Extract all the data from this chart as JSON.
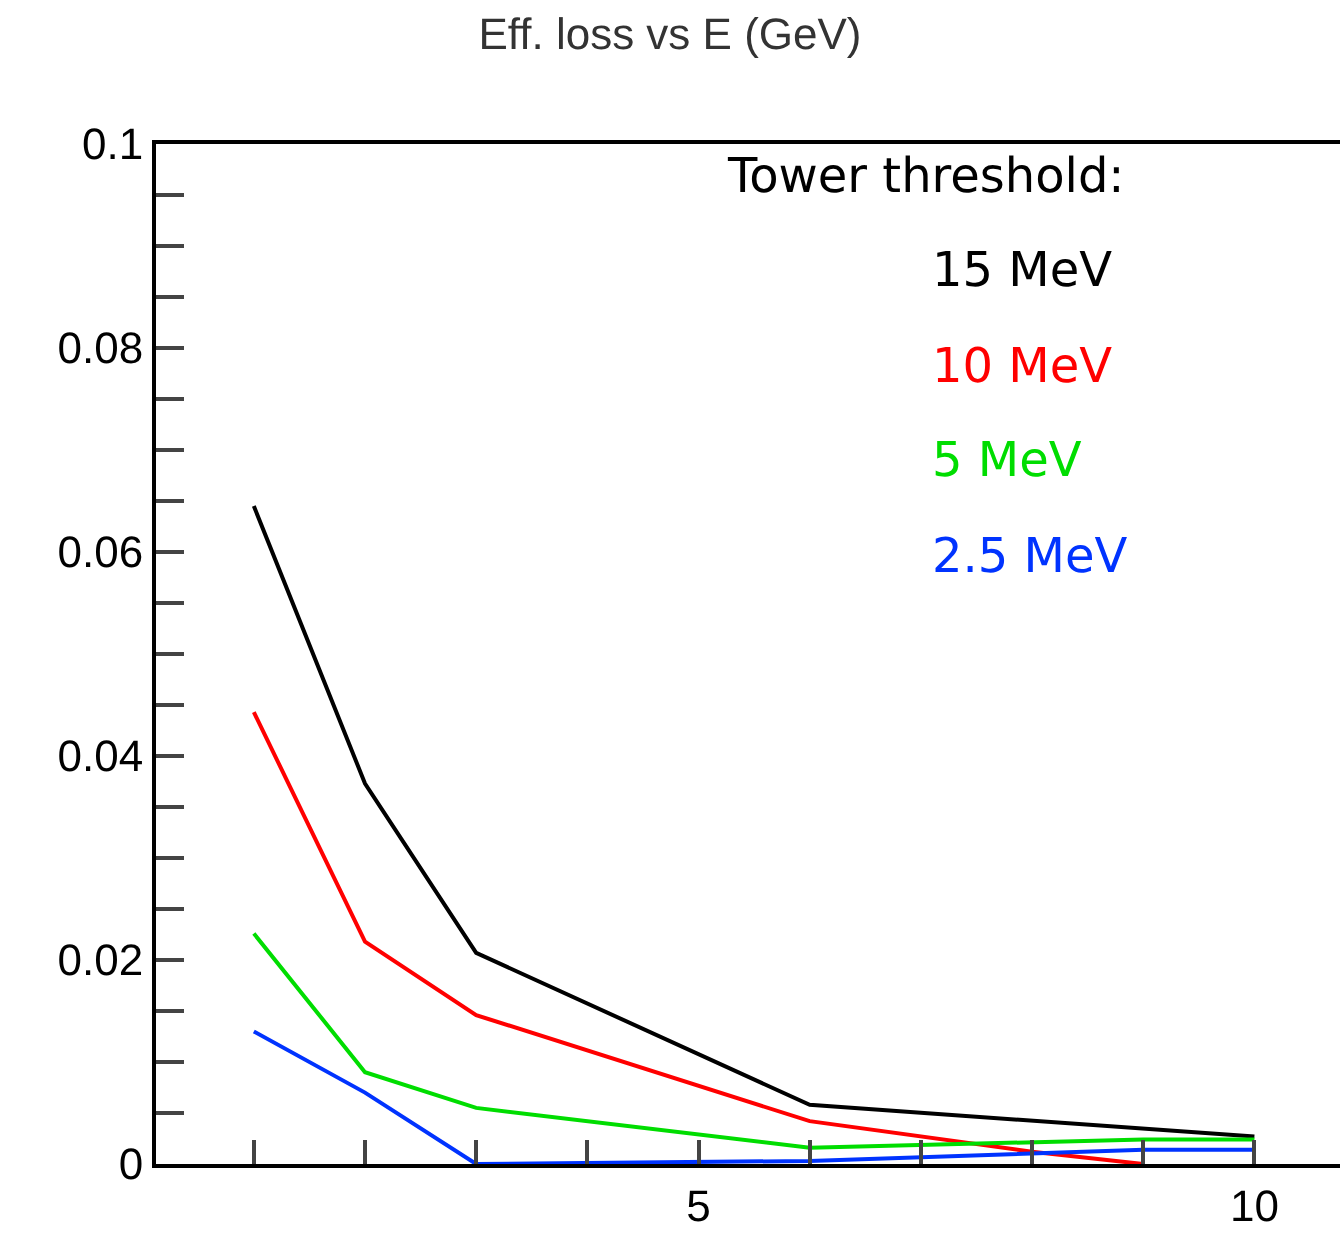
{
  "chart_data": {
    "type": "line",
    "title": "Eff. loss vs E (GeV)",
    "legend_title": "Tower threshold:",
    "legend": "top right",
    "marker": "none",
    "line_style": "solid",
    "xlim": [
      0.12,
      10.77
    ],
    "ylim": [
      0,
      0.1
    ],
    "xticks": [
      {
        "value": 1,
        "label": null
      },
      {
        "value": 2,
        "label": null
      },
      {
        "value": 3,
        "label": null
      },
      {
        "value": 4,
        "label": null
      },
      5,
      {
        "value": 6,
        "label": null
      },
      {
        "value": 7,
        "label": null
      },
      {
        "value": 8,
        "label": null
      },
      {
        "value": 9,
        "label": null
      },
      10
    ],
    "yticks": [
      0,
      {
        "value": 0.005,
        "label": null
      },
      {
        "value": 0.01,
        "label": null
      },
      {
        "value": 0.015,
        "label": null
      },
      0.02,
      {
        "value": 0.025,
        "label": null
      },
      {
        "value": 0.03,
        "label": null
      },
      {
        "value": 0.035,
        "label": null
      },
      0.04,
      {
        "value": 0.045,
        "label": null
      },
      {
        "value": 0.05,
        "label": null
      },
      {
        "value": 0.055,
        "label": null
      },
      0.06,
      {
        "value": 0.065,
        "label": null
      },
      {
        "value": 0.07,
        "label": null
      },
      {
        "value": 0.075,
        "label": null
      },
      0.08,
      {
        "value": 0.085,
        "label": null
      },
      {
        "value": 0.09,
        "label": null
      },
      {
        "value": 0.095,
        "label": null
      },
      0.1
    ],
    "series": [
      {
        "name": "15 MeV",
        "color": "#000000",
        "x": [
          1,
          2,
          3,
          6,
          10
        ],
        "values": [
          0.0645,
          0.0373,
          0.0207,
          0.0058,
          0.0027
        ]
      },
      {
        "name": "10 MeV",
        "color": "#ff0000",
        "x": [
          1,
          2,
          3,
          6,
          8,
          9
        ],
        "values": [
          0.0443,
          0.0218,
          0.0146,
          0.0042,
          0.0012,
          0
        ]
      },
      {
        "name": "5 MeV",
        "color": "#00dd00",
        "x": [
          1,
          2,
          3,
          6,
          9,
          10
        ],
        "values": [
          0.0226,
          0.009,
          0.0055,
          0.0016,
          0.0024,
          0.0024
        ]
      },
      {
        "name": "2.5 MeV",
        "color": "#0033ff",
        "x": [
          1,
          2,
          3,
          6,
          9,
          10
        ],
        "values": [
          0.013,
          0.007,
          0,
          0.0003,
          0.0014,
          0.0014
        ]
      }
    ]
  }
}
